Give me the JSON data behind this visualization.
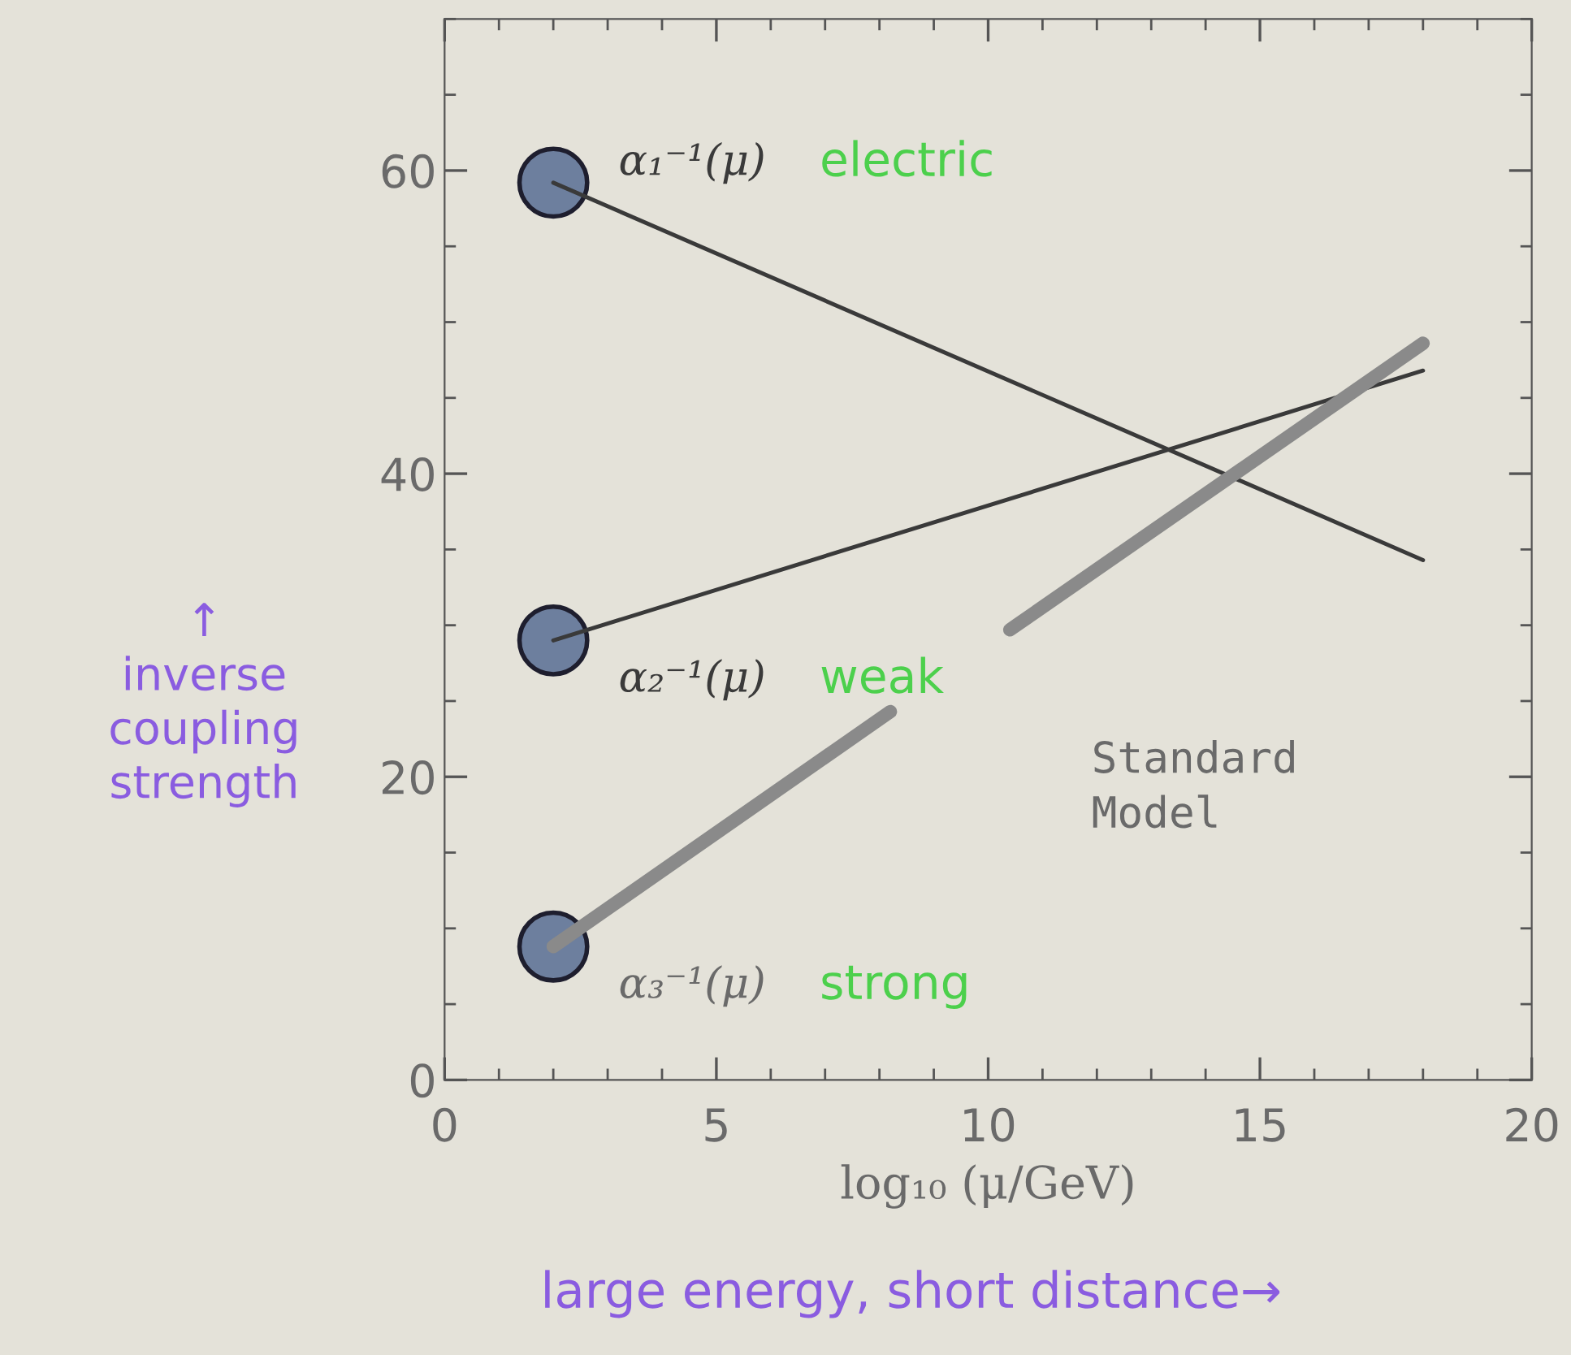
{
  "chart_data": {
    "type": "line",
    "xlabel": "log₁₀ (μ/GeV)",
    "ylabel": "↑\ninverse\ncoupling\nstrength",
    "xlim": [
      0,
      20
    ],
    "ylim": [
      0,
      70
    ],
    "xticks": [
      0,
      5,
      10,
      15,
      20
    ],
    "yticks": [
      0,
      20,
      40,
      60
    ],
    "grid": false,
    "legend": false,
    "line_style": "solid",
    "series": [
      {
        "name": "α₁⁻¹(μ)",
        "color": "#3a3a3a",
        "x": [
          2,
          18
        ],
        "values": [
          59.2,
          34.3
        ]
      },
      {
        "name": "α₂⁻¹(μ)",
        "color": "#3a3a3a",
        "x": [
          2,
          18
        ],
        "values": [
          29,
          46.8
        ]
      },
      {
        "name": "α₃⁻¹(μ)",
        "color": "#8a8a8a",
        "x": [
          2,
          8.2,
          9.3,
          10.4,
          18
        ],
        "values": [
          8.8,
          24.3,
          null,
          29.7,
          48.6
        ]
      },
      {
        "type": "scatter",
        "marker": "circle",
        "color": "#6d7f9e",
        "x": [
          2,
          2,
          2
        ],
        "values": [
          59.2,
          29,
          8.8
        ]
      }
    ],
    "annotations": [
      "electric",
      "weak",
      "strong",
      "Standard\nModel",
      "large energy, short distance→"
    ]
  }
}
